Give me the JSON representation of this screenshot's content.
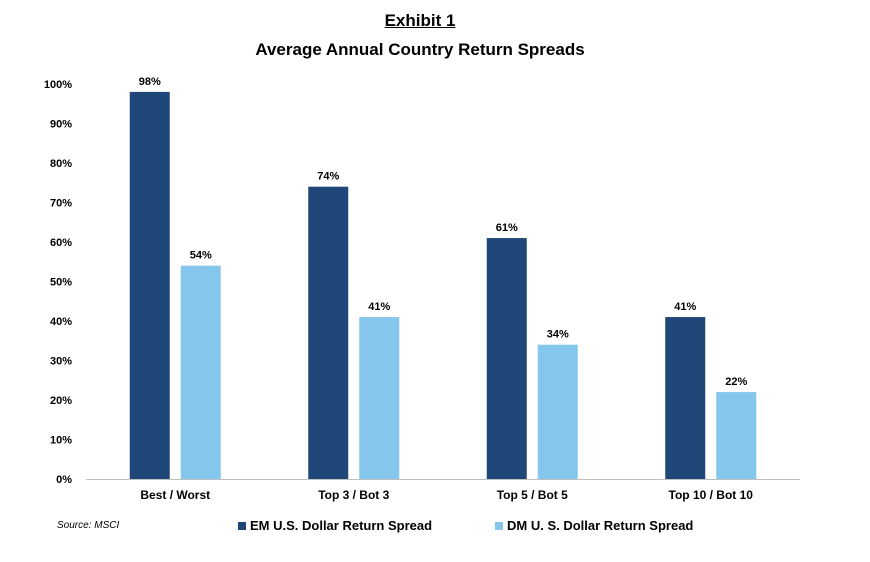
{
  "header": {
    "exhibit": "Exhibit 1",
    "title": "Average Annual Country Return Spreads"
  },
  "source": "Source: MSCI",
  "colors": {
    "em": "#1f4777",
    "dm": "#85c6ec",
    "axis": "#bfbfbf"
  },
  "chart_data": {
    "type": "bar",
    "title": "Average Annual Country Return Spreads",
    "categories": [
      "Best / Worst",
      "Top 3 / Bot 3",
      "Top 5 / Bot 5",
      "Top 10 / Bot 10"
    ],
    "series": [
      {
        "name": "EM U.S. Dollar Return Spread",
        "values": [
          98,
          74,
          61,
          41
        ],
        "labels": [
          "98%",
          "74%",
          "61%",
          "41%"
        ]
      },
      {
        "name": "DM U. S. Dollar Return Spread",
        "values": [
          54,
          41,
          34,
          22
        ],
        "labels": [
          "54%",
          "41%",
          "34%",
          "22%"
        ]
      }
    ],
    "ylim": [
      0,
      100
    ],
    "yticks": [
      "0%",
      "10%",
      "20%",
      "30%",
      "40%",
      "50%",
      "60%",
      "70%",
      "80%",
      "90%",
      "100%"
    ],
    "xlabel": "",
    "ylabel": "",
    "grid": false,
    "legend": "bottom"
  }
}
